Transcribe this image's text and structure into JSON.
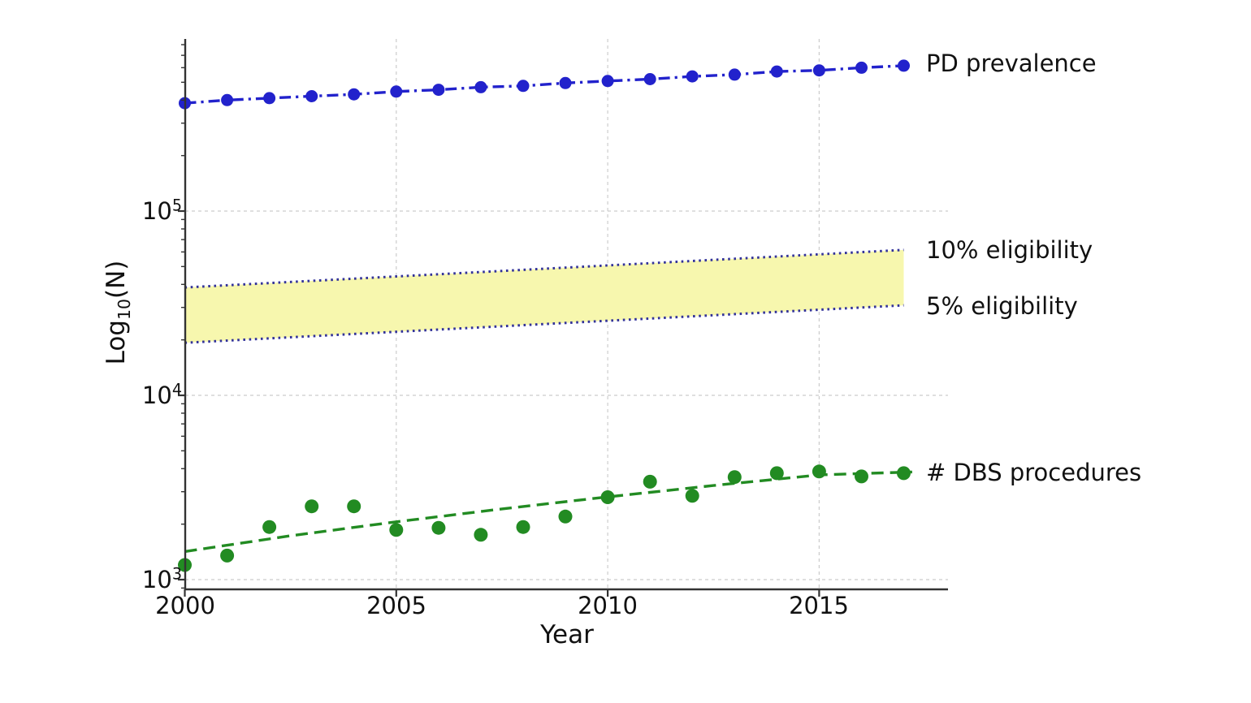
{
  "figure": {
    "background": "#ffffff",
    "text_color": "#111111"
  },
  "axes": {
    "x": {
      "label": "Year",
      "ticks": [
        "2000",
        "2005",
        "2010",
        "2015"
      ]
    },
    "y": {
      "label_prefix": "Log",
      "label_sub": "10",
      "label_suffix": "(N)",
      "ticks": [
        {
          "base": "10",
          "exp": "5"
        },
        {
          "base": "10",
          "exp": "4"
        },
        {
          "base": "10",
          "exp": "3"
        }
      ]
    }
  },
  "annotations": [
    {
      "label": "PD prevalence"
    },
    {
      "label": "10% eligibility"
    },
    {
      "label": "5% eligibility"
    },
    {
      "label": "# DBS procedures"
    }
  ],
  "chart_data": {
    "type": "line",
    "title": "",
    "xlabel": "Year",
    "ylabel": "Log10(N)",
    "y_scale": "log10",
    "x_range": [
      2000,
      2018
    ],
    "y_range": [
      900,
      860000
    ],
    "grid": {
      "on": true,
      "color": "#cccccc",
      "x_years": [
        2005,
        2010,
        2015
      ],
      "y_powers": [
        3,
        4,
        5
      ]
    },
    "band": {
      "fill": "#f7f7ae",
      "between": [
        "10% eligibility",
        "5% eligibility"
      ]
    },
    "legend_position": "right-annotations",
    "series": [
      {
        "id": "pd_prevalence",
        "name": "PD prevalence",
        "style": "dashdot",
        "color": "#2222cc",
        "width": 3.4,
        "dash": "14 6 3.2 6",
        "marker": true,
        "marker_radius": 7.5,
        "x": [
          2000,
          2001,
          2002,
          2003,
          2004,
          2005,
          2006,
          2007,
          2008,
          2009,
          2010,
          2011,
          2012,
          2013,
          2014,
          2015,
          2016,
          2017
        ],
        "values": [
          385000,
          400000,
          410000,
          420000,
          430000,
          445000,
          455000,
          470000,
          478000,
          495000,
          508000,
          520000,
          538000,
          550000,
          572000,
          580000,
          600000,
          615000
        ]
      },
      {
        "id": "elig10",
        "name": "10% eligibility",
        "style": "dotted",
        "color": "#32329a",
        "width": 3,
        "dash": "2.6 4.6",
        "marker": false,
        "x": [
          2000,
          2017
        ],
        "values": [
          38500,
          61500
        ]
      },
      {
        "id": "elig5",
        "name": "5% eligibility",
        "style": "dotted",
        "color": "#32329a",
        "width": 3,
        "dash": "2.6 4.6",
        "marker": false,
        "x": [
          2000,
          2017
        ],
        "values": [
          19300,
          30800
        ]
      },
      {
        "id": "dbs_observed",
        "name": "# DBS procedures (observed)",
        "style": "scatter",
        "color": "#228B22",
        "marker": true,
        "marker_radius": 8.5,
        "x": [
          2000,
          2001,
          2002,
          2003,
          2004,
          2005,
          2006,
          2007,
          2008,
          2009,
          2010,
          2011,
          2012,
          2013,
          2014,
          2015,
          2016,
          2017
        ],
        "values": [
          1200,
          1350,
          1930,
          2500,
          2500,
          1860,
          1910,
          1750,
          1930,
          2200,
          2800,
          3400,
          2850,
          3600,
          3780,
          3860,
          3630,
          3780
        ]
      },
      {
        "id": "dbs_trend",
        "name": "# DBS procedures (trend)",
        "style": "dashed",
        "color": "#228B22",
        "width": 3.4,
        "dash": "15 8",
        "marker": false,
        "x": [
          2000,
          2002.5,
          2005,
          2007.5,
          2010,
          2012.5,
          2015,
          2017.2
        ],
        "values": [
          1420,
          1730,
          2060,
          2420,
          2810,
          3240,
          3700,
          3840
        ]
      }
    ]
  }
}
